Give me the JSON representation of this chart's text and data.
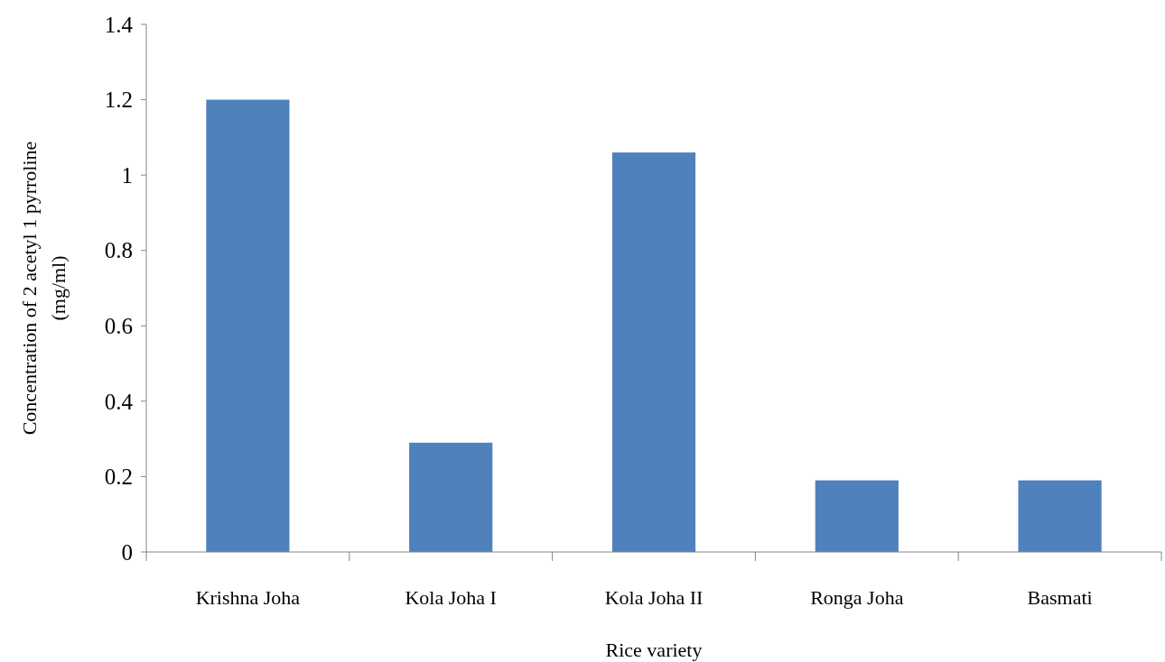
{
  "chart_data": {
    "type": "bar",
    "xlabel": "Rice variety",
    "ylabel": "Concentration of  2 acetyl 1 pyrroline\n(mg/ml)",
    "categories": [
      "Krishna Joha",
      "Kola Joha I",
      "Kola Joha II",
      "Ronga Joha",
      "Basmati"
    ],
    "values": [
      1.2,
      0.29,
      1.06,
      0.19,
      0.19
    ],
    "color": "#4f81bd",
    "ylim": [
      0,
      1.4
    ],
    "yticks": [
      0,
      0.2,
      0.4,
      0.6,
      0.8,
      1,
      1.2,
      1.4
    ],
    "grid": false
  }
}
